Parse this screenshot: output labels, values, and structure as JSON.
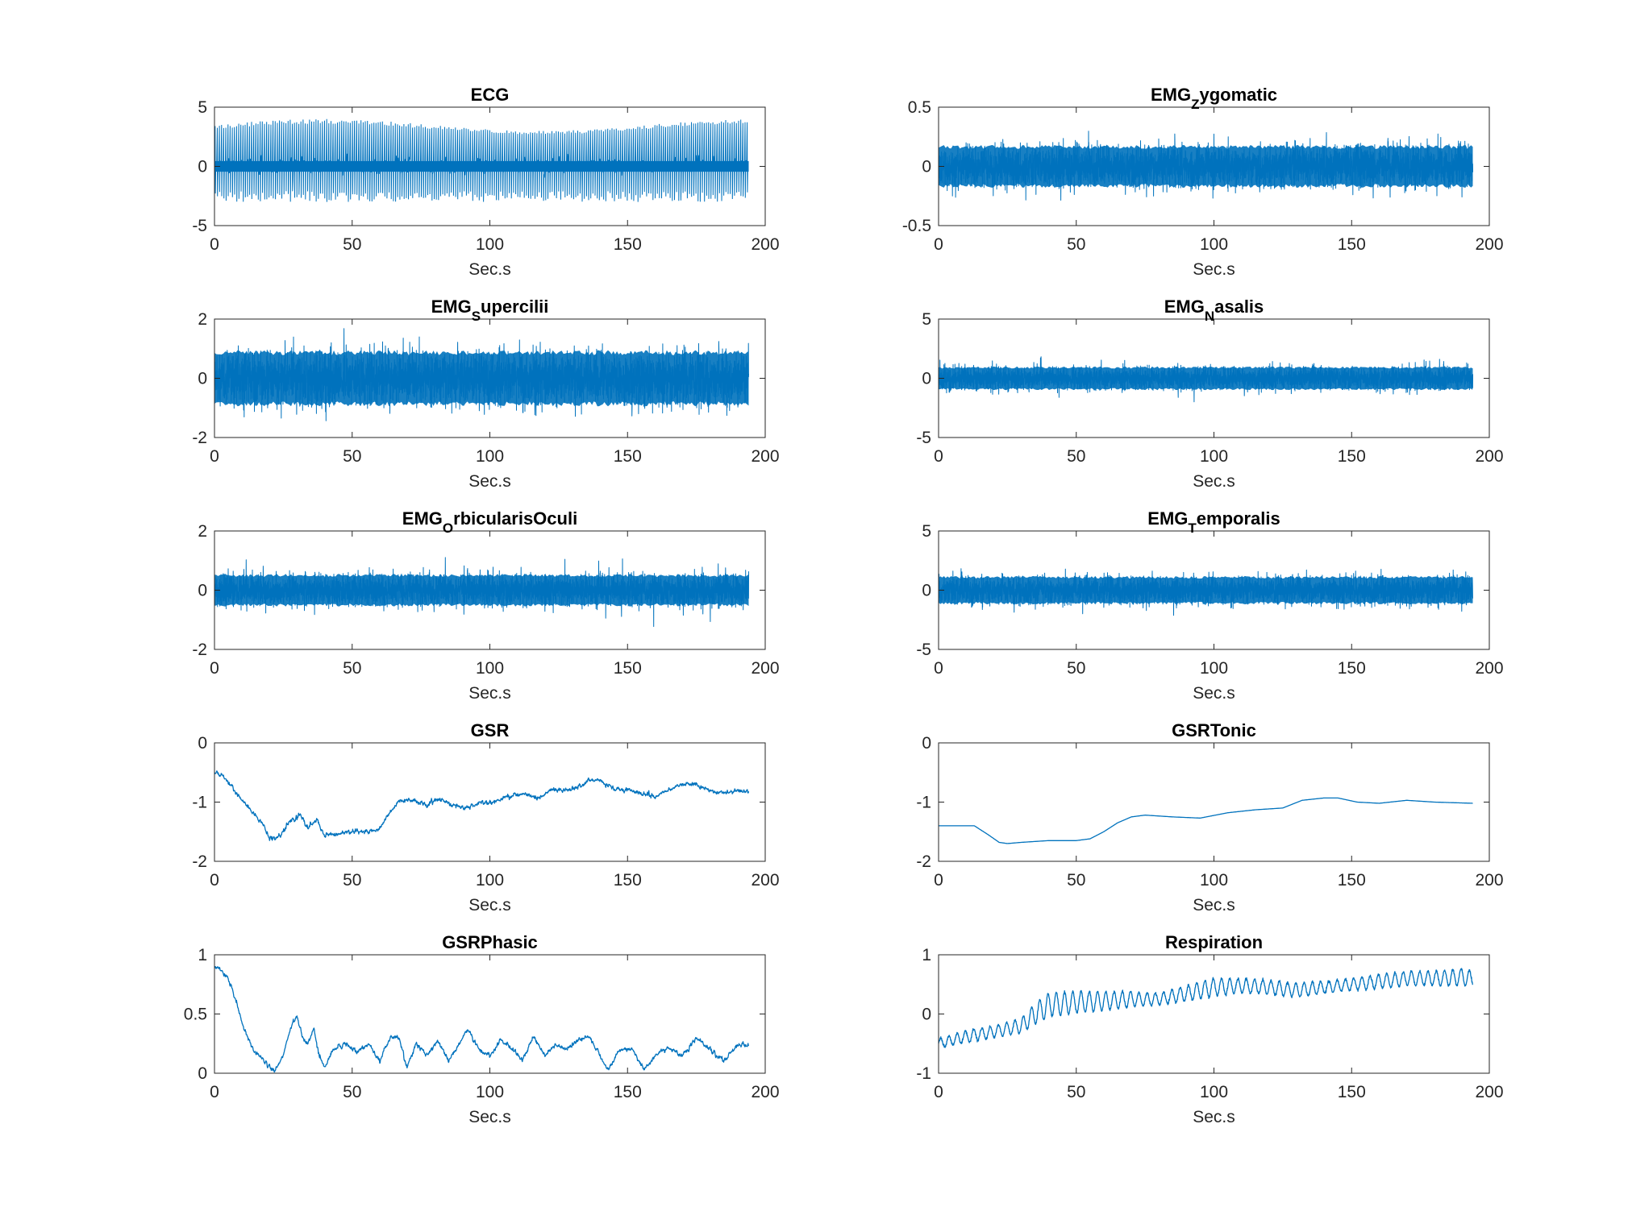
{
  "colors": {
    "line": "#0072bd",
    "axes": "#262626",
    "background": "#ffffff"
  },
  "chart_data": [
    {
      "type": "line",
      "title": {
        "main": "ECG"
      },
      "xlabel": "Sec.s",
      "xlim": [
        0,
        200
      ],
      "xticks": [
        0,
        50,
        100,
        150,
        200
      ],
      "ylim": [
        -5,
        5
      ],
      "yticks": [
        -5,
        0,
        5
      ],
      "ytick_labels": [
        "-5",
        "0",
        "5"
      ],
      "grid": false,
      "series": [
        {
          "signal": "ecg",
          "duration": 194,
          "baseline": 0,
          "r_peak_max": 4.0,
          "trough_min": -3.0
        }
      ]
    },
    {
      "type": "line",
      "title": {
        "main": "EMG",
        "sub": "Z",
        "rest": "ygomatic"
      },
      "xlabel": "Sec.s",
      "xlim": [
        0,
        200
      ],
      "xticks": [
        0,
        50,
        100,
        150,
        200
      ],
      "ylim": [
        -0.5,
        0.5
      ],
      "yticks": [
        -0.5,
        0,
        0.5
      ],
      "ytick_labels": [
        "-0.5",
        "0",
        "0.5"
      ],
      "grid": false,
      "series": [
        {
          "signal": "noise",
          "duration": 194,
          "center": 0,
          "band": 0.18,
          "peak": 0.3
        }
      ]
    },
    {
      "type": "line",
      "title": {
        "main": "EMG",
        "sub": "S",
        "rest": "upercilii"
      },
      "xlabel": "Sec.s",
      "xlim": [
        0,
        200
      ],
      "xticks": [
        0,
        50,
        100,
        150,
        200
      ],
      "ylim": [
        -2,
        2
      ],
      "yticks": [
        -2,
        0,
        2
      ],
      "ytick_labels": [
        "-2",
        "0",
        "2"
      ],
      "grid": false,
      "series": [
        {
          "signal": "noise",
          "duration": 194,
          "center": 0,
          "band": 0.95,
          "peak": 1.6
        }
      ]
    },
    {
      "type": "line",
      "title": {
        "main": "EMG",
        "sub": "N",
        "rest": "asalis"
      },
      "xlabel": "Sec.s",
      "xlim": [
        0,
        200
      ],
      "xticks": [
        0,
        50,
        100,
        150,
        200
      ],
      "ylim": [
        -5,
        5
      ],
      "yticks": [
        -5,
        0,
        5
      ],
      "ytick_labels": [
        "-5",
        "0",
        "5"
      ],
      "grid": false,
      "series": [
        {
          "signal": "noise",
          "duration": 194,
          "center": 0,
          "band": 1.0,
          "peak": 1.9
        }
      ]
    },
    {
      "type": "line",
      "title": {
        "main": "EMG",
        "sub": "O",
        "rest": "rbicularisOculi"
      },
      "xlabel": "Sec.s",
      "xlim": [
        0,
        200
      ],
      "xticks": [
        0,
        50,
        100,
        150,
        200
      ],
      "ylim": [
        -2,
        2
      ],
      "yticks": [
        -2,
        0,
        2
      ],
      "ytick_labels": [
        "-2",
        "0",
        "2"
      ],
      "grid": false,
      "series": [
        {
          "signal": "noise",
          "duration": 194,
          "center": 0,
          "band": 0.55,
          "peak": 1.2
        }
      ]
    },
    {
      "type": "line",
      "title": {
        "main": "EMG",
        "sub": "T",
        "rest": "emporalis"
      },
      "xlabel": "Sec.s",
      "xlim": [
        0,
        200
      ],
      "xticks": [
        0,
        50,
        100,
        150,
        200
      ],
      "ylim": [
        -5,
        5
      ],
      "yticks": [
        -5,
        0,
        5
      ],
      "ytick_labels": [
        "-5",
        "0",
        "5"
      ],
      "grid": false,
      "series": [
        {
          "signal": "noise",
          "duration": 194,
          "center": 0,
          "band": 1.2,
          "peak": 2.2
        }
      ]
    },
    {
      "type": "line",
      "title": {
        "main": "GSR"
      },
      "xlabel": "Sec.s",
      "xlim": [
        0,
        200
      ],
      "xticks": [
        0,
        50,
        100,
        150,
        200
      ],
      "ylim": [
        -2,
        0
      ],
      "yticks": [
        -2,
        -1,
        0
      ],
      "ytick_labels": [
        "-2",
        "-1",
        "0"
      ],
      "grid": false,
      "series": [
        {
          "signal": "smooth",
          "jitter": 0.04,
          "x": [
            0,
            3,
            8,
            12,
            17,
            20,
            22,
            25,
            28,
            31,
            34,
            37,
            40,
            44,
            48,
            52,
            56,
            60,
            63,
            67,
            72,
            77,
            82,
            87,
            92,
            97,
            102,
            107,
            112,
            117,
            122,
            127,
            132,
            137,
            140,
            145,
            150,
            155,
            160,
            165,
            170,
            175,
            180,
            185,
            190,
            194
          ],
          "y": [
            -0.5,
            -0.55,
            -0.85,
            -1.05,
            -1.35,
            -1.6,
            -1.65,
            -1.5,
            -1.3,
            -1.2,
            -1.45,
            -1.3,
            -1.55,
            -1.55,
            -1.5,
            -1.5,
            -1.5,
            -1.45,
            -1.2,
            -1.0,
            -0.95,
            -1.05,
            -0.95,
            -1.05,
            -1.1,
            -1.0,
            -1.0,
            -0.9,
            -0.85,
            -0.95,
            -0.8,
            -0.8,
            -0.75,
            -0.62,
            -0.65,
            -0.78,
            -0.8,
            -0.85,
            -0.9,
            -0.8,
            -0.7,
            -0.7,
            -0.8,
            -0.85,
            -0.8,
            -0.82
          ]
        }
      ]
    },
    {
      "type": "line",
      "title": {
        "main": "GSRTonic"
      },
      "xlabel": "Sec.s",
      "xlim": [
        0,
        200
      ],
      "xticks": [
        0,
        50,
        100,
        150,
        200
      ],
      "ylim": [
        -2,
        0
      ],
      "yticks": [
        -2,
        -1,
        0
      ],
      "ytick_labels": [
        "-2",
        "-1",
        "0"
      ],
      "grid": false,
      "series": [
        {
          "signal": "smooth",
          "jitter": 0,
          "x": [
            0,
            13,
            18,
            22,
            25,
            30,
            40,
            50,
            55,
            60,
            65,
            70,
            75,
            85,
            95,
            105,
            115,
            125,
            132,
            140,
            145,
            152,
            160,
            170,
            180,
            194
          ],
          "y": [
            -1.4,
            -1.4,
            -1.55,
            -1.68,
            -1.7,
            -1.68,
            -1.65,
            -1.65,
            -1.62,
            -1.5,
            -1.35,
            -1.25,
            -1.22,
            -1.25,
            -1.27,
            -1.18,
            -1.13,
            -1.1,
            -0.97,
            -0.93,
            -0.93,
            -1.0,
            -1.02,
            -0.97,
            -1.0,
            -1.02
          ]
        }
      ]
    },
    {
      "type": "line",
      "title": {
        "main": "GSRPhasic"
      },
      "xlabel": "Sec.s",
      "xlim": [
        0,
        200
      ],
      "xticks": [
        0,
        50,
        100,
        150,
        200
      ],
      "ylim": [
        0,
        1
      ],
      "yticks": [
        0,
        0.5,
        1
      ],
      "ytick_labels": [
        "0",
        "0.5",
        "1"
      ],
      "grid": false,
      "series": [
        {
          "signal": "smooth",
          "jitter": 0.02,
          "x": [
            0,
            2,
            5,
            8,
            11,
            14,
            18,
            22,
            25,
            28,
            30,
            32,
            34,
            36,
            38,
            40,
            43,
            47,
            52,
            56,
            60,
            64,
            67,
            70,
            73,
            77,
            81,
            85,
            89,
            92,
            96,
            100,
            104,
            108,
            112,
            116,
            120,
            124,
            128,
            132,
            136,
            140,
            143,
            147,
            152,
            156,
            160,
            165,
            170,
            175,
            180,
            185,
            190,
            194
          ],
          "y": [
            0.9,
            0.88,
            0.8,
            0.6,
            0.35,
            0.2,
            0.1,
            0.02,
            0.15,
            0.4,
            0.48,
            0.3,
            0.25,
            0.38,
            0.15,
            0.05,
            0.2,
            0.25,
            0.18,
            0.25,
            0.1,
            0.32,
            0.3,
            0.05,
            0.25,
            0.15,
            0.28,
            0.1,
            0.25,
            0.38,
            0.2,
            0.15,
            0.28,
            0.2,
            0.12,
            0.3,
            0.15,
            0.25,
            0.2,
            0.28,
            0.32,
            0.15,
            0.02,
            0.2,
            0.2,
            0.02,
            0.15,
            0.22,
            0.15,
            0.3,
            0.2,
            0.1,
            0.25,
            0.22
          ]
        }
      ]
    },
    {
      "type": "line",
      "title": {
        "main": "Respiration"
      },
      "xlabel": "Sec.s",
      "xlim": [
        0,
        200
      ],
      "xticks": [
        0,
        50,
        100,
        150,
        200
      ],
      "ylim": [
        -1,
        1
      ],
      "yticks": [
        -1,
        0,
        1
      ],
      "ytick_labels": [
        "-1",
        "0",
        "1"
      ],
      "grid": false,
      "series": [
        {
          "signal": "oscillating",
          "period": 3.0,
          "x": [
            0,
            10,
            20,
            30,
            35,
            40,
            50,
            60,
            70,
            80,
            90,
            100,
            110,
            120,
            130,
            140,
            150,
            160,
            170,
            180,
            190,
            194
          ],
          "center": [
            -0.5,
            -0.38,
            -0.3,
            -0.2,
            0.0,
            0.15,
            0.2,
            0.22,
            0.25,
            0.25,
            0.35,
            0.45,
            0.48,
            0.45,
            0.4,
            0.45,
            0.5,
            0.55,
            0.6,
            0.6,
            0.62,
            0.6
          ],
          "amp": [
            0.08,
            0.1,
            0.1,
            0.12,
            0.18,
            0.2,
            0.18,
            0.16,
            0.13,
            0.1,
            0.13,
            0.15,
            0.12,
            0.12,
            0.12,
            0.1,
            0.1,
            0.12,
            0.12,
            0.12,
            0.15,
            0.12
          ]
        }
      ]
    }
  ]
}
